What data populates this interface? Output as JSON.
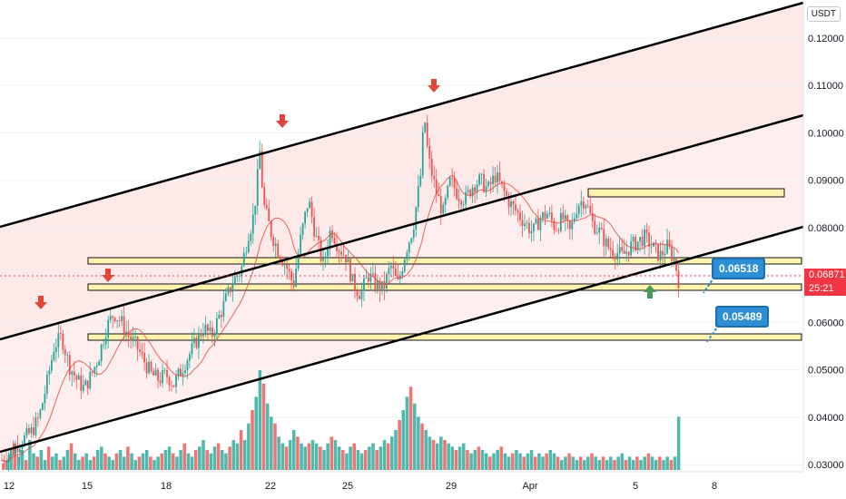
{
  "chart_data": {
    "type": "candlestick",
    "currency": "USDT",
    "x_ticks": [
      "12",
      "15",
      "18",
      "22",
      "25",
      "29",
      "Apr",
      "5",
      "8"
    ],
    "y_ticks": [
      "0.12000",
      "0.11000",
      "0.10000",
      "0.09000",
      "0.08000",
      "0.07000",
      "0.06000",
      "0.05000",
      "0.04000",
      "0.03000"
    ],
    "ylim": [
      0.0285,
      0.1265
    ],
    "last_price": "0.06871",
    "countdown": "25:21",
    "annotations": [
      {
        "label": "0.06518",
        "value": 0.06518
      },
      {
        "label": "0.05489",
        "value": 0.05489
      }
    ],
    "price_path": [
      [
        0,
        0.031
      ],
      [
        4,
        0.034
      ],
      [
        8,
        0.037
      ],
      [
        10,
        0.04
      ],
      [
        12,
        0.047
      ],
      [
        14,
        0.055
      ],
      [
        16,
        0.057
      ],
      [
        18,
        0.051
      ],
      [
        20,
        0.048
      ],
      [
        22,
        0.046
      ],
      [
        24,
        0.049
      ],
      [
        26,
        0.053
      ],
      [
        28,
        0.059
      ],
      [
        30,
        0.062
      ],
      [
        32,
        0.06
      ],
      [
        34,
        0.057
      ],
      [
        36,
        0.055
      ],
      [
        38,
        0.052
      ],
      [
        40,
        0.049
      ],
      [
        42,
        0.048
      ],
      [
        44,
        0.049
      ],
      [
        46,
        0.047
      ],
      [
        48,
        0.05
      ],
      [
        50,
        0.053
      ],
      [
        52,
        0.056
      ],
      [
        54,
        0.059
      ],
      [
        56,
        0.057
      ],
      [
        58,
        0.061
      ],
      [
        60,
        0.065
      ],
      [
        62,
        0.069
      ],
      [
        64,
        0.071
      ],
      [
        66,
        0.079
      ],
      [
        67,
        0.081
      ],
      [
        68,
        0.087
      ],
      [
        69,
        0.096
      ],
      [
        70,
        0.085
      ],
      [
        72,
        0.079
      ],
      [
        74,
        0.075
      ],
      [
        76,
        0.072
      ],
      [
        78,
        0.068
      ],
      [
        80,
        0.078
      ],
      [
        82,
        0.086
      ],
      [
        84,
        0.078
      ],
      [
        86,
        0.072
      ],
      [
        88,
        0.08
      ],
      [
        90,
        0.076
      ],
      [
        92,
        0.074
      ],
      [
        94,
        0.068
      ],
      [
        96,
        0.066
      ],
      [
        98,
        0.07
      ],
      [
        100,
        0.068
      ],
      [
        102,
        0.067
      ],
      [
        104,
        0.072
      ],
      [
        106,
        0.068
      ],
      [
        108,
        0.075
      ],
      [
        110,
        0.08
      ],
      [
        112,
        0.091
      ],
      [
        113,
        0.104
      ],
      [
        114,
        0.095
      ],
      [
        116,
        0.088
      ],
      [
        118,
        0.083
      ],
      [
        120,
        0.09
      ],
      [
        122,
        0.087
      ],
      [
        124,
        0.086
      ],
      [
        126,
        0.089
      ],
      [
        128,
        0.09
      ],
      [
        130,
        0.088
      ],
      [
        132,
        0.091
      ],
      [
        134,
        0.088
      ],
      [
        136,
        0.085
      ],
      [
        138,
        0.083
      ],
      [
        140,
        0.081
      ],
      [
        142,
        0.079
      ],
      [
        144,
        0.082
      ],
      [
        146,
        0.083
      ],
      [
        148,
        0.08
      ],
      [
        150,
        0.082
      ],
      [
        152,
        0.079
      ],
      [
        154,
        0.085
      ],
      [
        156,
        0.086
      ],
      [
        158,
        0.081
      ],
      [
        160,
        0.079
      ],
      [
        162,
        0.076
      ],
      [
        164,
        0.075
      ],
      [
        166,
        0.074
      ],
      [
        168,
        0.076
      ],
      [
        170,
        0.077
      ],
      [
        172,
        0.078
      ],
      [
        174,
        0.076
      ],
      [
        176,
        0.074
      ],
      [
        178,
        0.076
      ],
      [
        180,
        0.073
      ],
      [
        181,
        0.069
      ]
    ],
    "volume": [
      2,
      3,
      5,
      8,
      4,
      6,
      3,
      9,
      5,
      4,
      6,
      3,
      7,
      4,
      5,
      3,
      4,
      6,
      8,
      5,
      3,
      4,
      5,
      3,
      4,
      6,
      7,
      5,
      4,
      3,
      5,
      6,
      4,
      7,
      5,
      3,
      4,
      5,
      6,
      4,
      3,
      4,
      5,
      6,
      7,
      5,
      4,
      6,
      8,
      5,
      4,
      6,
      7,
      9,
      6,
      5,
      7,
      8,
      6,
      5,
      7,
      9,
      8,
      12,
      9,
      14,
      18,
      22,
      30,
      26,
      20,
      16,
      14,
      10,
      8,
      7,
      9,
      12,
      10,
      8,
      7,
      8,
      9,
      8,
      7,
      6,
      8,
      10,
      9,
      7,
      6,
      5,
      7,
      8,
      6,
      5,
      6,
      7,
      8,
      6,
      7,
      9,
      8,
      10,
      12,
      15,
      18,
      22,
      25,
      20,
      16,
      14,
      12,
      10,
      9,
      8,
      10,
      9,
      8,
      7,
      6,
      7,
      8,
      6,
      5,
      6,
      7,
      6,
      5,
      4,
      5,
      6,
      7,
      5,
      4,
      5,
      6,
      5,
      4,
      5,
      6,
      4,
      5,
      4,
      5,
      6,
      5,
      4,
      3,
      4,
      5,
      4,
      3,
      4,
      3,
      4,
      5,
      4,
      3,
      4,
      3,
      4,
      3,
      4,
      5,
      3,
      4,
      3,
      4,
      3,
      4,
      5,
      4,
      3,
      4,
      3,
      4,
      3,
      4,
      16
    ]
  }
}
